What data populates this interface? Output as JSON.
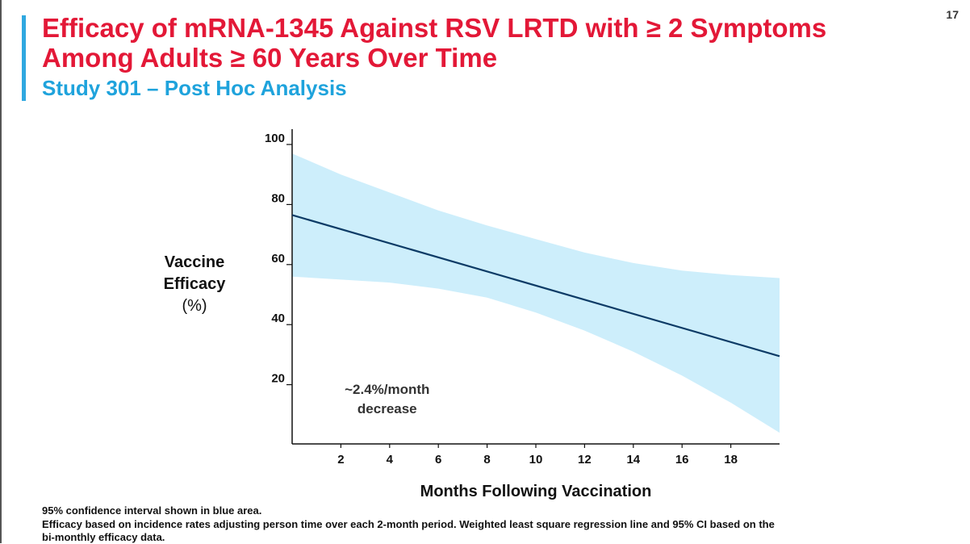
{
  "page": {
    "title_line1": "Efficacy of mRNA-1345 Against RSV LRTD with ≥ 2 Symptoms",
    "title_line2": "Among Adults ≥ 60 Years Over Time",
    "subtitle": "Study 301 – Post Hoc Analysis",
    "page_number": "17"
  },
  "colors": {
    "title": "#e31837",
    "subtitle": "#1fa3dc",
    "ci_band": "#cdeefb",
    "line": "#0d3b66"
  },
  "chart_data": {
    "type": "line",
    "title": "Efficacy of mRNA-1345 Against RSV LRTD with ≥ 2 Symptoms Among Adults ≥ 60 Years Over Time",
    "xlabel": "Months Following Vaccination",
    "ylabel_lines": [
      "Vaccine",
      "Efficacy",
      "(%)"
    ],
    "xlim": [
      0,
      20
    ],
    "ylim": [
      0,
      105
    ],
    "xticks": [
      2,
      4,
      6,
      8,
      10,
      12,
      14,
      16,
      18
    ],
    "yticks": [
      20,
      40,
      60,
      80,
      100
    ],
    "grid": false,
    "series": [
      {
        "name": "Weighted least square regression line",
        "x": [
          0,
          20
        ],
        "y": [
          76.5,
          29.5
        ]
      }
    ],
    "confidence_band": {
      "name": "95% confidence interval",
      "x": [
        0,
        2,
        4,
        6,
        8,
        10,
        12,
        14,
        16,
        18,
        20
      ],
      "upper": [
        97,
        90,
        84,
        78,
        73,
        68.5,
        64,
        60.5,
        58,
        56.5,
        55.5
      ],
      "lower": [
        56,
        55,
        54,
        52,
        49,
        44,
        38,
        31,
        23,
        14,
        4
      ]
    },
    "annotations": [
      {
        "text_line1": "~2.4%/month",
        "text_line2": "decrease",
        "x": 3.9,
        "y": 17
      }
    ]
  },
  "footnotes": [
    "95% confidence interval shown in blue area.",
    "Efficacy based on incidence rates adjusting person time over each 2-month period.  Weighted least square regression line and 95% CI based on the",
    "bi-monthly efficacy data."
  ]
}
